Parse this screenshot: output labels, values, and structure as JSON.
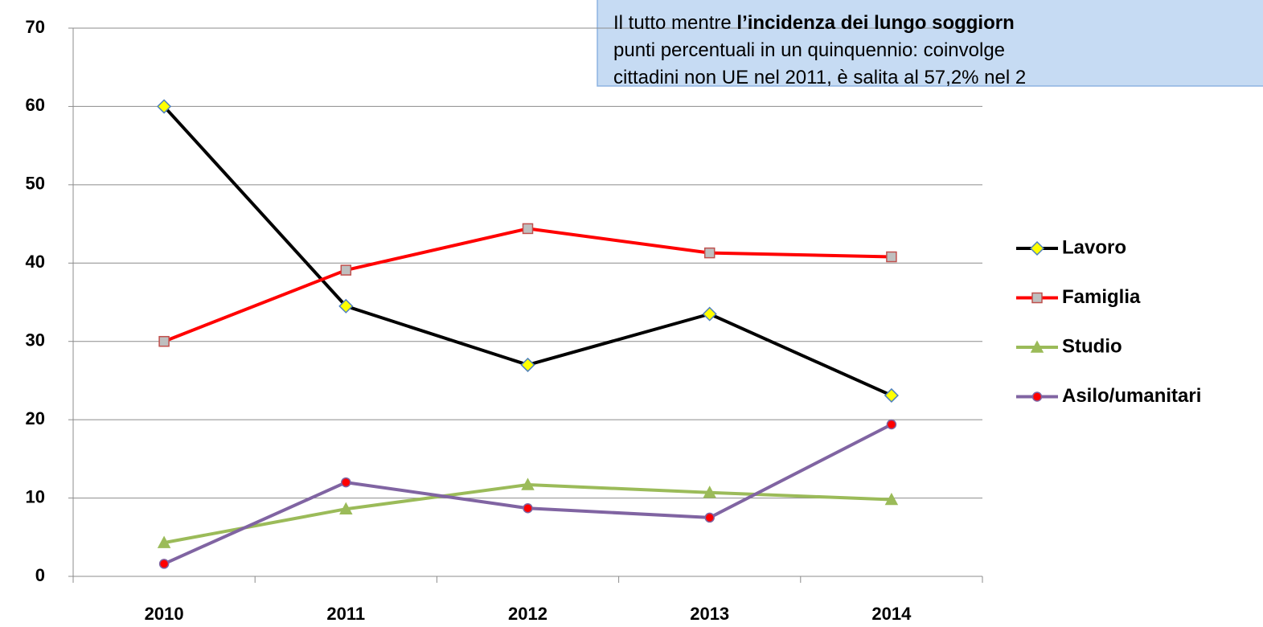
{
  "chart_data": {
    "type": "line",
    "categories": [
      "2010",
      "2011",
      "2012",
      "2013",
      "2014"
    ],
    "series": [
      {
        "name": "Lavoro",
        "color": "#000000",
        "marker": "diamond",
        "marker_fill": "#ffff00",
        "marker_stroke": "#4f81bd",
        "values": [
          60,
          34.5,
          27,
          33.5,
          23.1
        ]
      },
      {
        "name": "Famiglia",
        "color": "#ff0000",
        "marker": "square",
        "marker_fill": "#bfbfbf",
        "marker_stroke": "#c0504d",
        "values": [
          30,
          39.1,
          44.4,
          41.3,
          40.8
        ]
      },
      {
        "name": "Studio",
        "color": "#9bbb59",
        "marker": "triangle",
        "marker_fill": "#9bbb59",
        "marker_stroke": "#9bbb59",
        "values": [
          4.3,
          8.6,
          11.7,
          10.7,
          9.8
        ]
      },
      {
        "name": "Asilo/umanitari",
        "color": "#8064a2",
        "marker": "circle",
        "marker_fill": "#ff0000",
        "marker_stroke": "#8064a2",
        "values": [
          1.6,
          12.0,
          8.7,
          7.5,
          19.4
        ]
      }
    ],
    "ylim": [
      0,
      70
    ],
    "yticks": [
      0,
      10,
      20,
      30,
      40,
      50,
      60,
      70
    ],
    "grid": true,
    "legend": "right",
    "annotation": [
      [
        {
          "text": "Il tutto mentre "
        },
        {
          "text": "l’incidenza dei lungo soggiorn",
          "bold": true
        }
      ],
      [
        {
          "text": "punti percentuali in un quinquennio: coinvolge"
        }
      ],
      [
        {
          "text": "cittadini non UE nel 2011, è salita al 57,2% nel 2"
        }
      ]
    ]
  }
}
